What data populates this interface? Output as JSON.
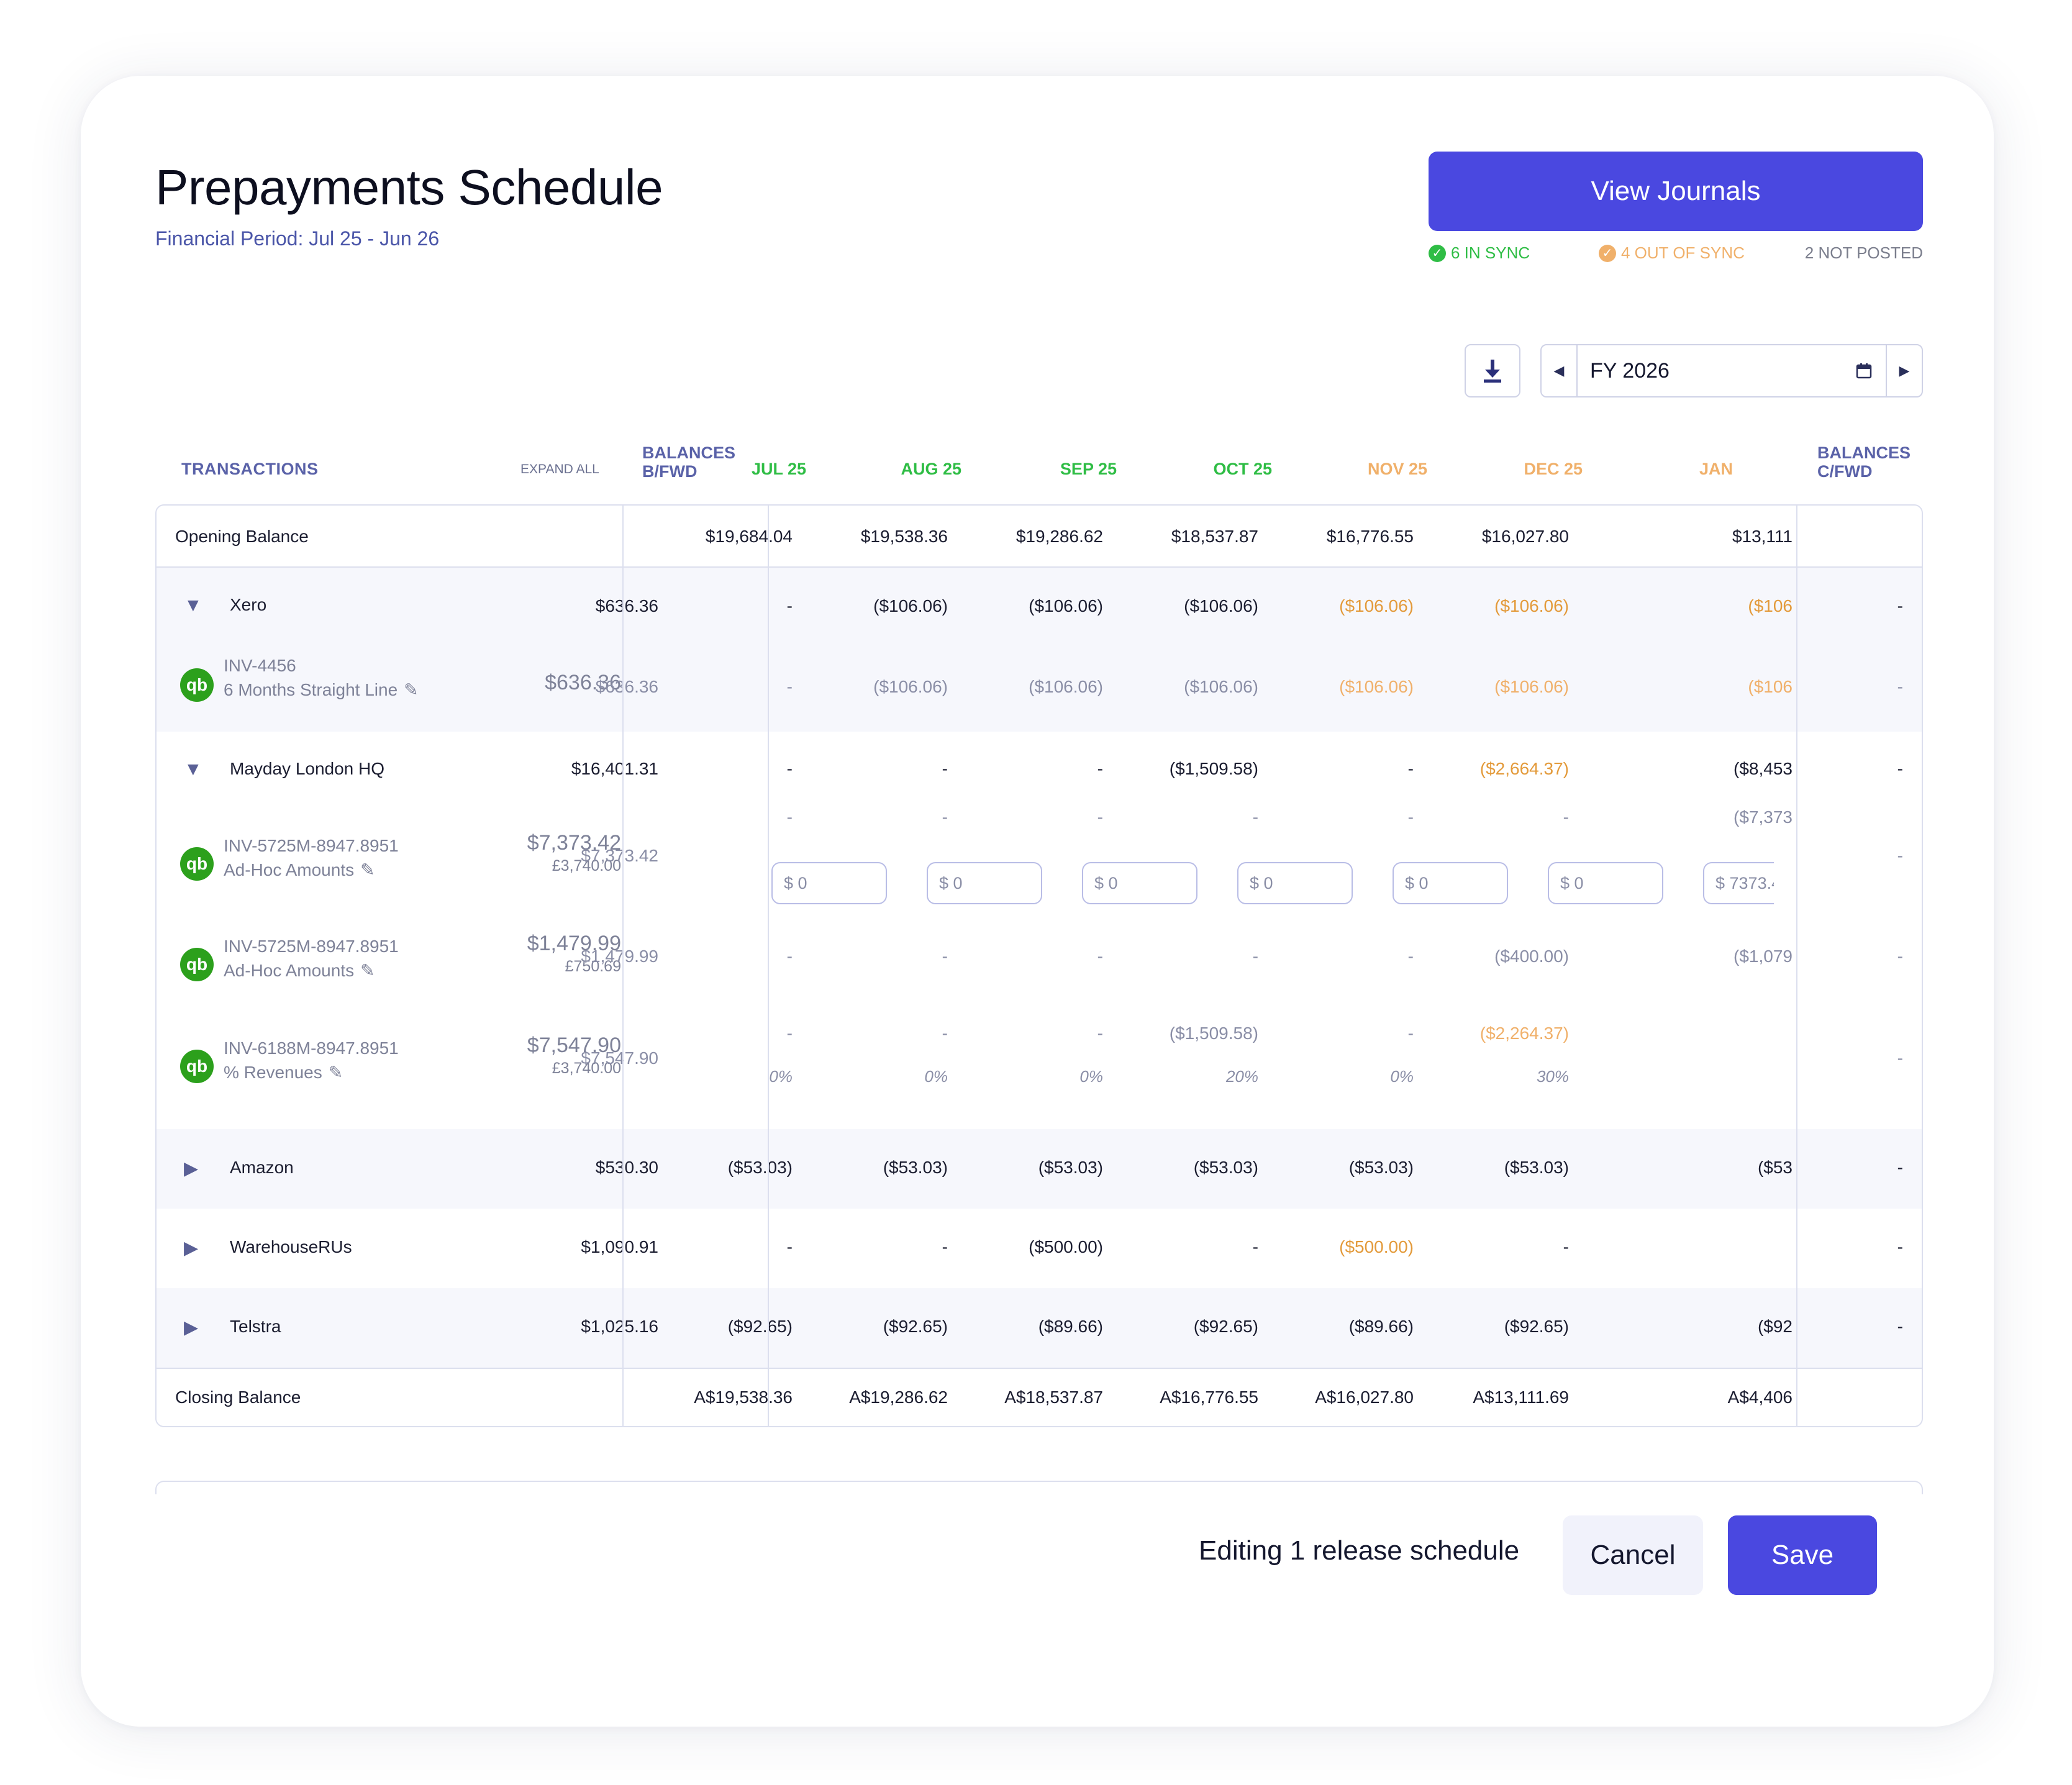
{
  "header": {
    "title": "Prepayments Schedule",
    "period_label": "Financial Period: ",
    "period_value": "Jul 25 - Jun 26",
    "view_journals_label": "View Journals",
    "sync": {
      "in_sync": "6 IN SYNC",
      "out_of_sync": "4 OUT OF SYNC",
      "not_posted": "2 NOT POSTED"
    },
    "colors": {
      "accent": "#4a48e0",
      "in_sync": "#2fbd45",
      "out_of_sync": "#f0b06a",
      "muted": "#7a7d8c"
    }
  },
  "toolbar": {
    "download_icon": "download-icon",
    "year": "FY 2026",
    "calendar_icon": "calendar-icon",
    "prev_icon": "caret-left-icon",
    "next_icon": "caret-right-icon"
  },
  "columns": {
    "transactions": "TRANSACTIONS",
    "expand_all": "EXPAND ALL",
    "balances_bfwd": [
      "BALANCES",
      "B/FWD"
    ],
    "months": [
      "JUL 25",
      "AUG 25",
      "SEP 25",
      "OCT 25",
      "NOV 25",
      "DEC 25",
      "JAN"
    ],
    "month_status": [
      "sync",
      "sync",
      "sync",
      "sync",
      "out",
      "out",
      "out"
    ],
    "balances_cfwd": [
      "BALANCES",
      "C/FWD"
    ]
  },
  "opening": {
    "label": "Opening Balance",
    "values": [
      "$19,684.04",
      "$19,538.36",
      "$19,286.62",
      "$18,537.87",
      "$16,776.55",
      "$16,027.80",
      "$13,111"
    ]
  },
  "groups": {
    "xero": {
      "name": "Xero",
      "bfwd": "$636.36",
      "values": [
        "-",
        "($106.06)",
        "($106.06)",
        "($106.06)",
        "($106.06)",
        "($106.06)",
        "($106"
      ],
      "cfwd": "-"
    },
    "mayday": {
      "name": "Mayday London HQ",
      "bfwd": "$16,401.31",
      "values": [
        "-",
        "-",
        "-",
        "($1,509.58)",
        "-",
        "($2,664.37)",
        "($8,453"
      ],
      "cfwd": "-"
    },
    "amazon": {
      "name": "Amazon",
      "bfwd": "$530.30",
      "values": [
        "($53.03)",
        "($53.03)",
        "($53.03)",
        "($53.03)",
        "($53.03)",
        "($53.03)",
        "($53"
      ],
      "cfwd": "-"
    },
    "warehouse": {
      "name": "WarehouseRUs",
      "bfwd": "$1,090.91",
      "values": [
        "-",
        "-",
        "($500.00)",
        "-",
        "($500.00)",
        "-",
        ""
      ],
      "cfwd": "-"
    },
    "telstra": {
      "name": "Telstra",
      "bfwd": "$1,025.16",
      "values": [
        "($92.65)",
        "($92.65)",
        "($89.66)",
        "($92.65)",
        "($89.66)",
        "($92.65)",
        "($92"
      ],
      "cfwd": "-"
    }
  },
  "invoices": {
    "inv1": {
      "id": "INV-4456",
      "method": "6 Months Straight Line",
      "amount": "$636.36",
      "bfwd": "$636.36",
      "values": [
        "-",
        "($106.06)",
        "($106.06)",
        "($106.06)",
        "($106.06)",
        "($106.06)",
        "($106"
      ],
      "cfwd": "-"
    },
    "inv2": {
      "id": "INV-5725M-8947.8951",
      "method": "Ad-Hoc Amounts",
      "amount": "$7,373.42",
      "sub": "£3,740.00",
      "bfwd": "$7,373.42",
      "values": [
        "-",
        "-",
        "-",
        "-",
        "-",
        "-",
        "($7,373"
      ],
      "inputs": [
        "$ 0",
        "$ 0",
        "$ 0",
        "$ 0",
        "$ 0",
        "$ 0",
        "$ 7373.4"
      ],
      "cfwd": "-"
    },
    "inv3": {
      "id": "INV-5725M-8947.8951",
      "method": "Ad-Hoc Amounts",
      "amount": "$1,479.99",
      "sub": "£750.69",
      "bfwd": "$1,479.99",
      "values": [
        "-",
        "-",
        "-",
        "-",
        "-",
        "($400.00)",
        "($1,079"
      ],
      "cfwd": "-"
    },
    "inv4": {
      "id": "INV-6188M-8947.8951",
      "method": "% Revenues",
      "amount": "$7,547.90",
      "sub": "£3,740.00",
      "bfwd": "$7,547.90",
      "values": [
        "-",
        "-",
        "-",
        "($1,509.58)",
        "-",
        "($2,264.37)",
        ""
      ],
      "pcts": [
        "0%",
        "0%",
        "0%",
        "20%",
        "0%",
        "30%",
        ""
      ],
      "cfwd": "-"
    }
  },
  "closing": {
    "label": "Closing Balance",
    "values": [
      "A$19,538.36",
      "A$19,286.62",
      "A$18,537.87",
      "A$16,776.55",
      "A$16,027.80",
      "A$13,111.69",
      "A$4,406"
    ]
  },
  "footer": {
    "editing": "Editing 1 release schedule",
    "cancel": "Cancel",
    "save": "Save"
  }
}
